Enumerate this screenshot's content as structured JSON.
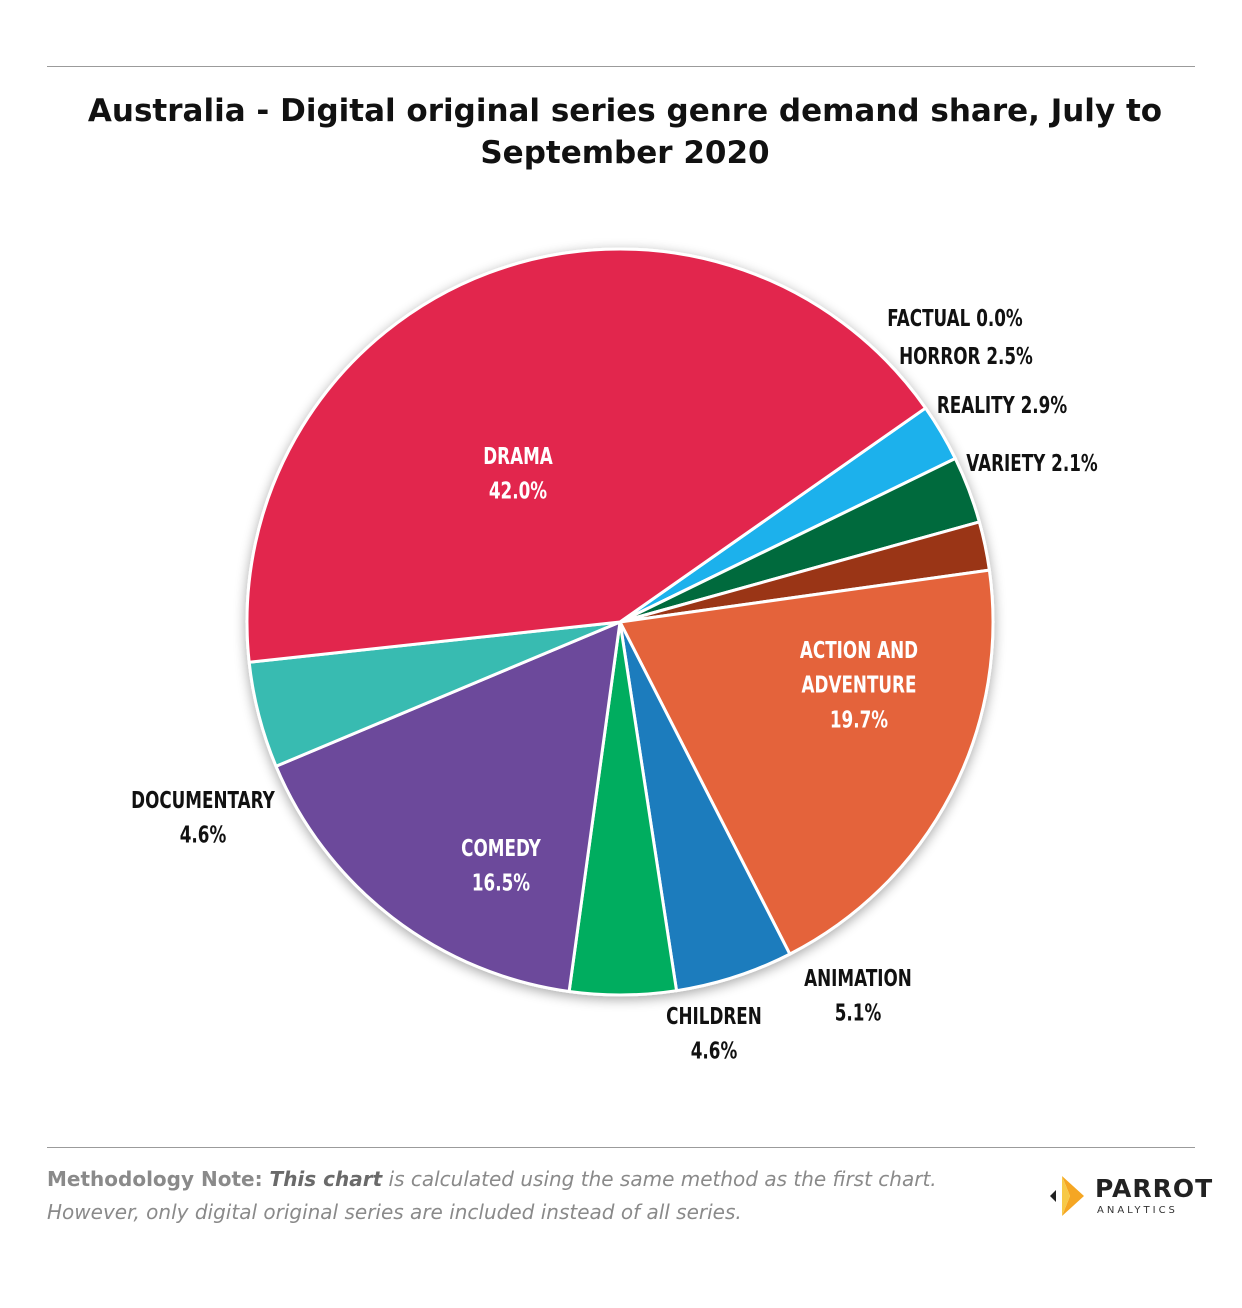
{
  "chart_data": {
    "type": "pie",
    "title": "Australia - Digital original series genre demand share, July to September 2020",
    "slices": [
      {
        "label": "FACTUAL",
        "value": 0.0,
        "value_label": "0.0%",
        "color": "#6b4a9c"
      },
      {
        "label": "HORROR",
        "value": 2.5,
        "value_label": "2.5%",
        "color": "#1bb1ec"
      },
      {
        "label": "REALITY",
        "value": 2.9,
        "value_label": "2.9%",
        "color": "#006b3c"
      },
      {
        "label": "VARIETY",
        "value": 2.1,
        "value_label": "2.1%",
        "color": "#9a3416"
      },
      {
        "label": "ACTION AND ADVENTURE",
        "value": 19.7,
        "value_label": "19.7%",
        "color": "#e4643a"
      },
      {
        "label": "ANIMATION",
        "value": 5.1,
        "value_label": "5.1%",
        "color": "#1c7bbd"
      },
      {
        "label": "CHILDREN",
        "value": 4.6,
        "value_label": "4.6%",
        "color": "#00ad5f"
      },
      {
        "label": "COMEDY",
        "value": 16.5,
        "value_label": "16.5%",
        "color": "#6c4a9b"
      },
      {
        "label": "DOCUMENTARY",
        "value": 4.6,
        "value_label": "4.6%",
        "color": "#39bbb1"
      },
      {
        "label": "DRAMA",
        "value": 42.0,
        "value_label": "42.0%",
        "color": "#e2254d"
      }
    ]
  },
  "footer": {
    "note_lead": "Methodology Note: ",
    "note_em": "This chart",
    "note_rest": " is calculated using the same method as the first chart. However, only digital original series are included instead of all series.",
    "logo_name": "PARROT",
    "logo_sub": "ANALYTICS"
  }
}
